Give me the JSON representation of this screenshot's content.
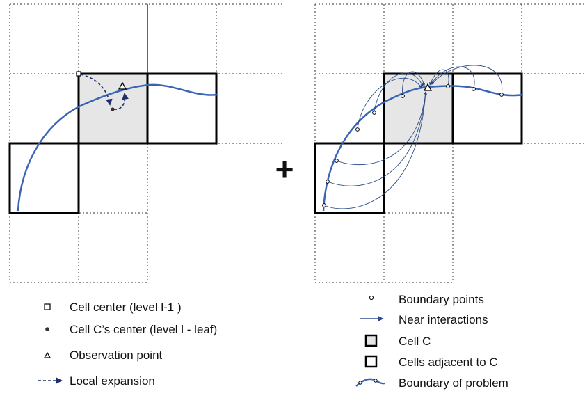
{
  "colors": {
    "boundary": "#3a64b5",
    "near_arrow": "#2b4a8a",
    "expansion_arrow": "#1e2f6b",
    "cell_fill": "#e6e6e6",
    "cell_border": "#000000",
    "grid_dotted": "#333333"
  },
  "operator": "+",
  "legend_left": {
    "cell_center": "Cell center (level l-1 )",
    "leaf_center": "Cell C’s center (level l - leaf)",
    "observation_point": "Observation point",
    "local_expansion": "Local expansion"
  },
  "legend_right": {
    "boundary_points": "Boundary points",
    "near_interactions": "Near interactions",
    "cell_c": "Cell C",
    "adjacent_cells": "Cells adjacent to C",
    "boundary_of_problem": "Boundary of problem"
  }
}
